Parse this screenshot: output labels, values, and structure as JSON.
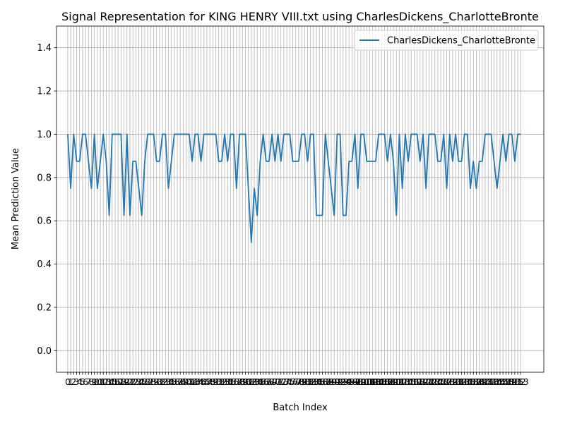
{
  "chart_data": {
    "type": "line",
    "title": "Signal Representation for KING HENRY VIII.txt using CharlesDickens_CharlotteBronte",
    "xlabel": "Batch Index",
    "ylabel": "Mean Prediction Value",
    "xlim": [
      -3.8,
      160.8
    ],
    "ylim": [
      -0.1,
      1.5
    ],
    "yticks": [
      0.0,
      0.2,
      0.4,
      0.6,
      0.8,
      1.0,
      1.2,
      1.4
    ],
    "ytick_labels": [
      "0.0",
      "0.2",
      "0.4",
      "0.6",
      "0.8",
      "1.0",
      "1.2",
      "1.4"
    ],
    "xtick_note": "one vertical grid line and one tick label per batch index (0 … 153)",
    "x": [
      0,
      1,
      2,
      3,
      4,
      5,
      6,
      7,
      8,
      9,
      10,
      11,
      12,
      13,
      14,
      15,
      16,
      17,
      18,
      19,
      20,
      21,
      22,
      23,
      24,
      25,
      26,
      27,
      28,
      29,
      30,
      31,
      32,
      33,
      34,
      35,
      36,
      37,
      38,
      39,
      40,
      41,
      42,
      43,
      44,
      45,
      46,
      47,
      48,
      49,
      50,
      51,
      52,
      53,
      54,
      55,
      56,
      57,
      58,
      59,
      60,
      61,
      62,
      63,
      64,
      65,
      66,
      67,
      68,
      69,
      70,
      71,
      72,
      73,
      74,
      75,
      76,
      77,
      78,
      79,
      80,
      81,
      82,
      83,
      84,
      85,
      86,
      87,
      88,
      89,
      90,
      91,
      92,
      93,
      94,
      95,
      96,
      97,
      98,
      99,
      100,
      101,
      102,
      103,
      104,
      105,
      106,
      107,
      108,
      109,
      110,
      111,
      112,
      113,
      114,
      115,
      116,
      117,
      118,
      119,
      120,
      121,
      122,
      123,
      124,
      125,
      126,
      127,
      128,
      129,
      130,
      131,
      132,
      133,
      134,
      135,
      136,
      137,
      138,
      139,
      140,
      141,
      142,
      143,
      144,
      145,
      146,
      147,
      148,
      149,
      150,
      151,
      152,
      153
    ],
    "series": [
      {
        "name": "CharlesDickens_CharlotteBronte",
        "color": "#1f77b4",
        "values": [
          1.0,
          0.75,
          1.0,
          0.875,
          0.875,
          1.0,
          1.0,
          0.875,
          0.75,
          1.0,
          0.75,
          0.875,
          1.0,
          0.875,
          0.625,
          1.0,
          1.0,
          1.0,
          1.0,
          0.625,
          1.0,
          0.625,
          0.875,
          0.875,
          0.75,
          0.625,
          0.875,
          1.0,
          1.0,
          1.0,
          0.875,
          0.875,
          1.0,
          1.0,
          0.75,
          0.875,
          1.0,
          1.0,
          1.0,
          1.0,
          1.0,
          1.0,
          0.875,
          1.0,
          1.0,
          0.875,
          1.0,
          1.0,
          1.0,
          1.0,
          1.0,
          0.875,
          0.875,
          1.0,
          0.875,
          1.0,
          1.0,
          0.75,
          1.0,
          1.0,
          1.0,
          0.75,
          0.5,
          0.75,
          0.625,
          0.875,
          1.0,
          0.875,
          0.875,
          1.0,
          0.875,
          1.0,
          0.875,
          1.0,
          1.0,
          1.0,
          0.875,
          0.875,
          0.875,
          1.0,
          1.0,
          0.875,
          1.0,
          1.0,
          0.625,
          0.625,
          0.625,
          1.0,
          0.875,
          0.75,
          0.625,
          1.0,
          1.0,
          0.625,
          0.625,
          0.875,
          0.875,
          1.0,
          0.75,
          1.0,
          1.0,
          0.875,
          0.875,
          0.875,
          0.875,
          1.0,
          1.0,
          1.0,
          0.875,
          1.0,
          0.875,
          0.625,
          1.0,
          0.75,
          1.0,
          0.875,
          1.0,
          1.0,
          1.0,
          0.875,
          1.0,
          0.75,
          1.0,
          1.0,
          1.0,
          0.875,
          0.875,
          1.0,
          0.75,
          1.0,
          0.875,
          1.0,
          0.875,
          0.875,
          1.0,
          1.0,
          0.75,
          0.875,
          0.75,
          0.875,
          0.875,
          1.0,
          1.0,
          1.0,
          0.875,
          0.75,
          0.875,
          1.0,
          0.875,
          1.0,
          1.0,
          0.875,
          1.0,
          1.0
        ]
      }
    ],
    "grid": true,
    "legend_position": "top-right"
  }
}
